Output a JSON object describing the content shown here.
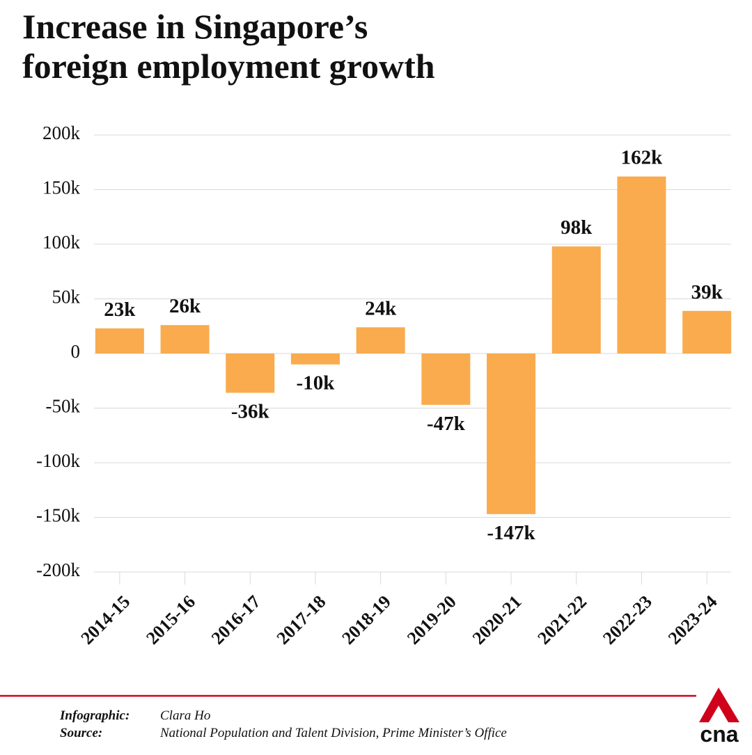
{
  "chart_data": {
    "type": "bar",
    "title": "Increase in Singapore’s foreign employment growth",
    "categories": [
      "2014-15",
      "2015-16",
      "2016-17",
      "2017-18",
      "2018-19",
      "2019-20",
      "2020-21",
      "2021-22",
      "2022-23",
      "2023-24"
    ],
    "values": [
      23000,
      26000,
      -36000,
      -10000,
      24000,
      -47000,
      -147000,
      98000,
      162000,
      39000
    ],
    "value_labels": [
      "23k",
      "26k",
      "-36k",
      "-10k",
      "24k",
      "-47k",
      "-147k",
      "98k",
      "162k",
      "39k"
    ],
    "color": "#f9ab4e",
    "ylim": [
      -200000,
      200000
    ],
    "yticks": [
      {
        "value": -200000,
        "label": "-200k"
      },
      {
        "value": -150000,
        "label": "-150k"
      },
      {
        "value": -100000,
        "label": "-100k"
      },
      {
        "value": -50000,
        "label": "-50k"
      },
      0,
      {
        "value": 50000,
        "label": "50k"
      },
      {
        "value": 100000,
        "label": "100k"
      },
      {
        "value": 150000,
        "label": "150k"
      },
      {
        "value": 200000,
        "label": "200k"
      }
    ],
    "grid": true
  },
  "footer": {
    "infographic_label": "Infographic:",
    "infographic": "Clara Ho",
    "source_label": "Source:",
    "source": "National Population and Talent Division, Prime Minister’s Office",
    "logo": "cna"
  }
}
